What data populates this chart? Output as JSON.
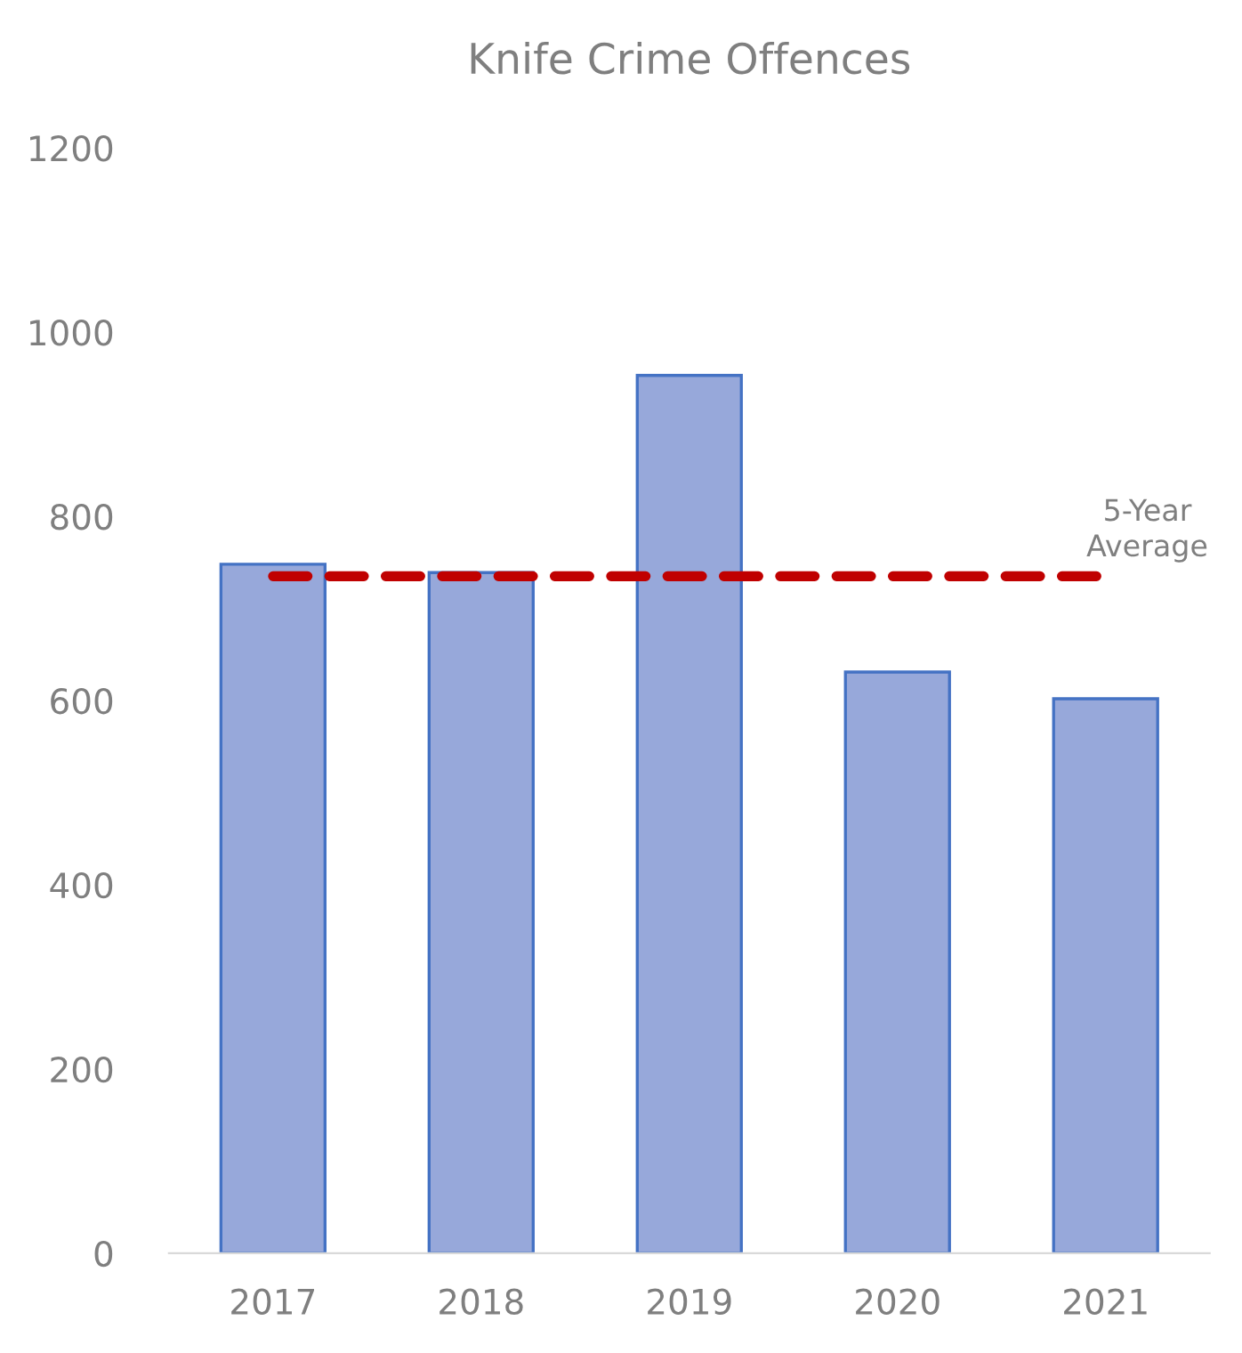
{
  "chart_data": {
    "type": "bar",
    "title": "Knife Crime Offences",
    "categories": [
      "2017",
      "2018",
      "2019",
      "2020",
      "2021"
    ],
    "values": [
      748,
      739,
      953,
      631,
      602
    ],
    "color": "#97a8da",
    "ylim": [
      0,
      1200
    ],
    "yticks": [
      0,
      200,
      400,
      600,
      800,
      1000,
      1200
    ],
    "ref_lines": [
      {
        "axis": "y",
        "value": 735,
        "label": "5-Year Average",
        "color": "#c00000",
        "line_style": "dashed"
      }
    ]
  }
}
